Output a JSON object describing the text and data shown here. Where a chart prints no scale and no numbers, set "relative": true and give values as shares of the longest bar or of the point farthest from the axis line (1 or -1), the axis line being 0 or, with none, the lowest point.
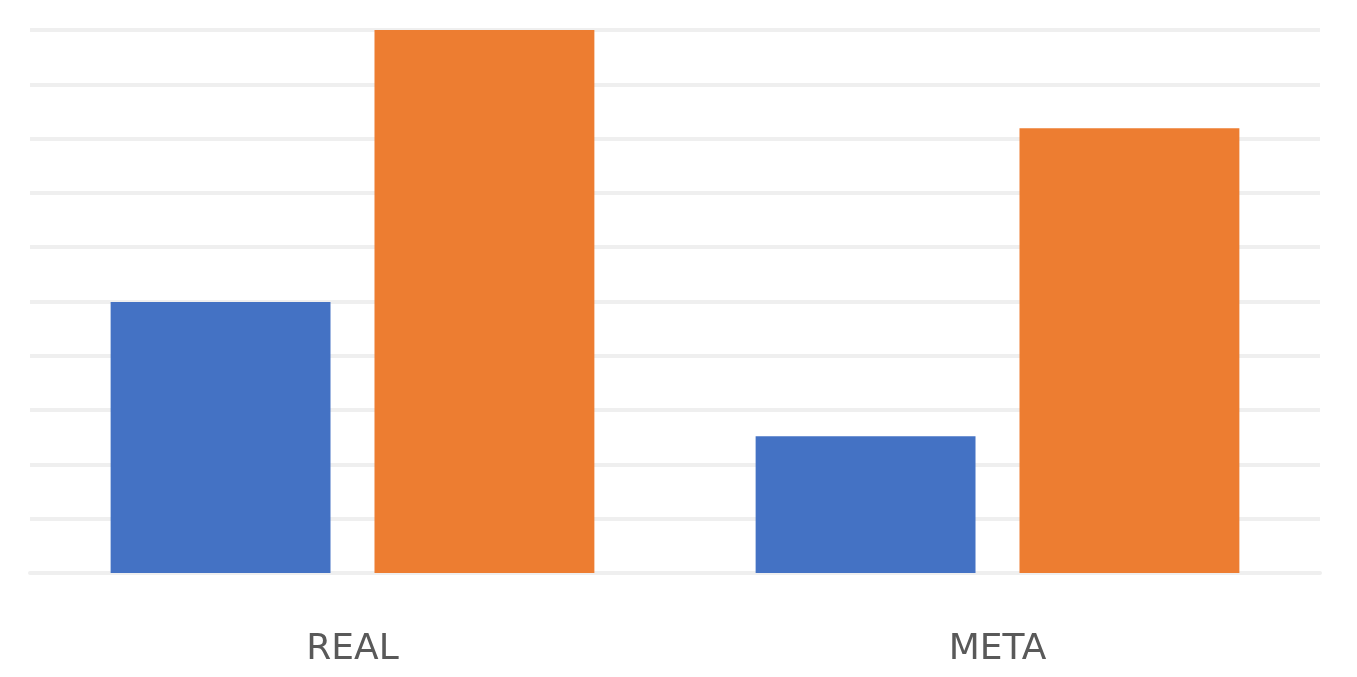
{
  "chart_data": {
    "type": "bar",
    "relative": true,
    "categories": [
      "REAL",
      "META"
    ],
    "series": [
      {
        "color": "#4472c4",
        "values": [
          0.499,
          0.252
        ]
      },
      {
        "color": "#ed7d31",
        "values": [
          1,
          0.819
        ]
      }
    ],
    "grid": "y"
  }
}
